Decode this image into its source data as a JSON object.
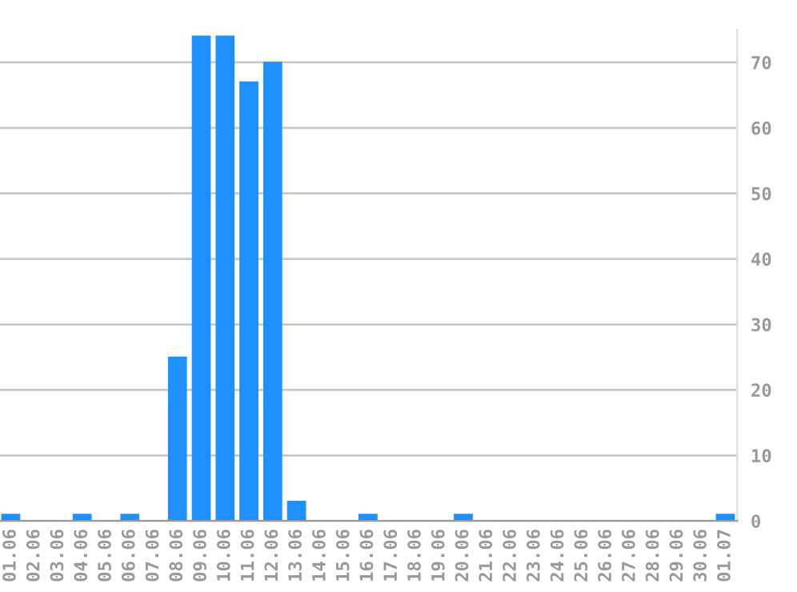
{
  "chart_data": {
    "type": "bar",
    "categories": [
      "01.06",
      "02.06",
      "03.06",
      "04.06",
      "05.06",
      "06.06",
      "07.06",
      "08.06",
      "09.06",
      "10.06",
      "11.06",
      "12.06",
      "13.06",
      "14.06",
      "15.06",
      "16.06",
      "17.06",
      "18.06",
      "19.06",
      "20.06",
      "21.06",
      "22.06",
      "23.06",
      "24.06",
      "25.06",
      "26.06",
      "27.06",
      "28.06",
      "29.06",
      "30.06",
      "01.07"
    ],
    "values": [
      1,
      0,
      0,
      1,
      0,
      1,
      0,
      25,
      74,
      74,
      67,
      70,
      3,
      0,
      0,
      1,
      0,
      0,
      0,
      1,
      0,
      0,
      0,
      0,
      0,
      0,
      0,
      0,
      0,
      0,
      1
    ],
    "color": "#1e90ff",
    "ylim": [
      0,
      75
    ],
    "yticks": [
      0,
      10,
      20,
      30,
      40,
      50,
      60,
      70
    ],
    "grid": "y",
    "legend": false
  }
}
